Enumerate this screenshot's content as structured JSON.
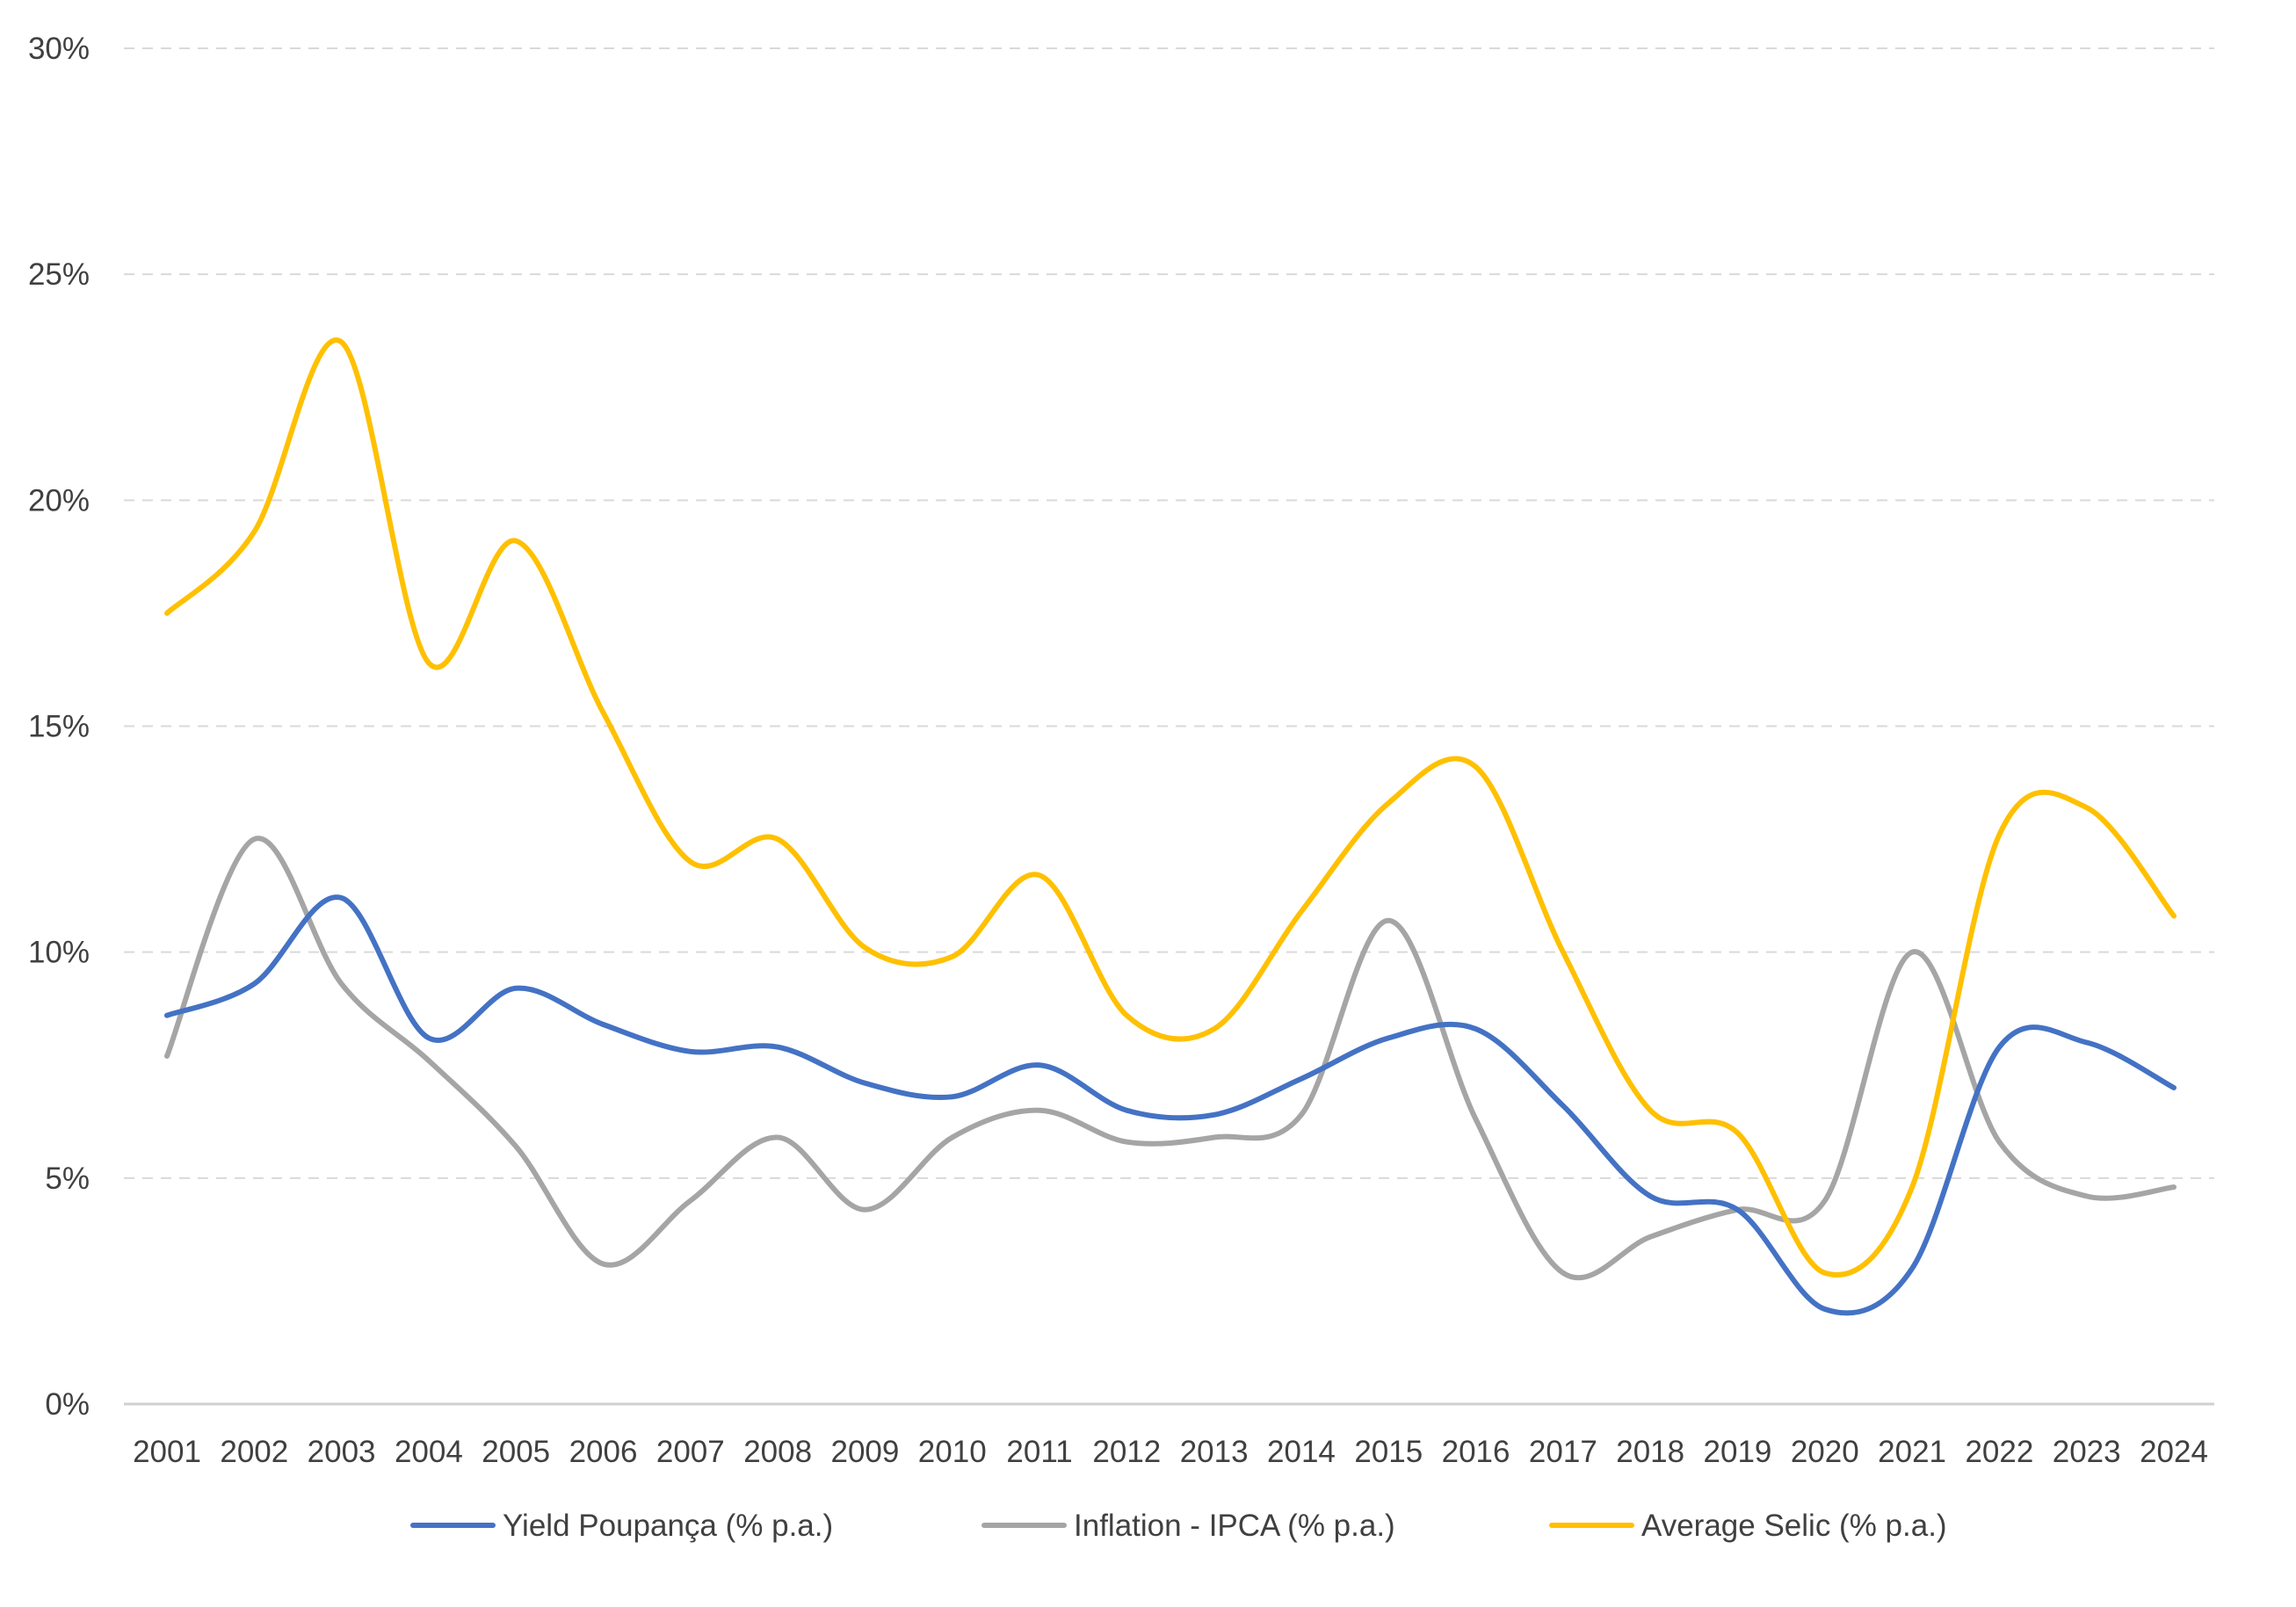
{
  "chart_data": {
    "type": "line",
    "title": "",
    "xlabel": "",
    "ylabel": "",
    "x": [
      "2001",
      "2002",
      "2003",
      "2004",
      "2005",
      "2006",
      "2007",
      "2008",
      "2009",
      "2010",
      "2011",
      "2012",
      "2013",
      "2014",
      "2015",
      "2016",
      "2017",
      "2018",
      "2019",
      "2020",
      "2021",
      "2022",
      "2023",
      "2024"
    ],
    "ylim": [
      0,
      30
    ],
    "yticks": [
      0,
      5,
      10,
      15,
      20,
      25,
      30
    ],
    "ytick_labels": [
      "0%",
      "5%",
      "10%",
      "15%",
      "20%",
      "25%",
      "30%"
    ],
    "grid": true,
    "legend_position": "bottom",
    "series": [
      {
        "name": "Yield Poupança (% p.a.)",
        "color": "#4472C4",
        "values": [
          8.6,
          9.3,
          11.2,
          8.1,
          9.2,
          8.4,
          7.8,
          7.9,
          7.1,
          6.8,
          7.5,
          6.5,
          6.4,
          7.2,
          8.1,
          8.3,
          6.6,
          4.6,
          4.3,
          2.1,
          3.0,
          7.9,
          8.0,
          7.0
        ]
      },
      {
        "name": "Inflation - IPCA (% p.a.)",
        "color": "#A5A5A5",
        "values": [
          7.7,
          12.5,
          9.3,
          7.6,
          5.7,
          3.1,
          4.5,
          5.9,
          4.3,
          5.9,
          6.5,
          5.8,
          5.9,
          6.4,
          10.7,
          6.3,
          2.9,
          3.7,
          4.3,
          4.5,
          10.0,
          5.8,
          4.6,
          4.8
        ]
      },
      {
        "name": "Average Selic (% p.a.)",
        "color": "#FFC000",
        "values": [
          17.5,
          19.3,
          23.5,
          16.4,
          19.1,
          15.3,
          12.0,
          12.5,
          10.1,
          9.9,
          11.7,
          8.6,
          8.3,
          10.9,
          13.3,
          14.1,
          10.0,
          6.5,
          6.0,
          2.9,
          4.8,
          12.6,
          13.2,
          10.8
        ]
      }
    ]
  }
}
